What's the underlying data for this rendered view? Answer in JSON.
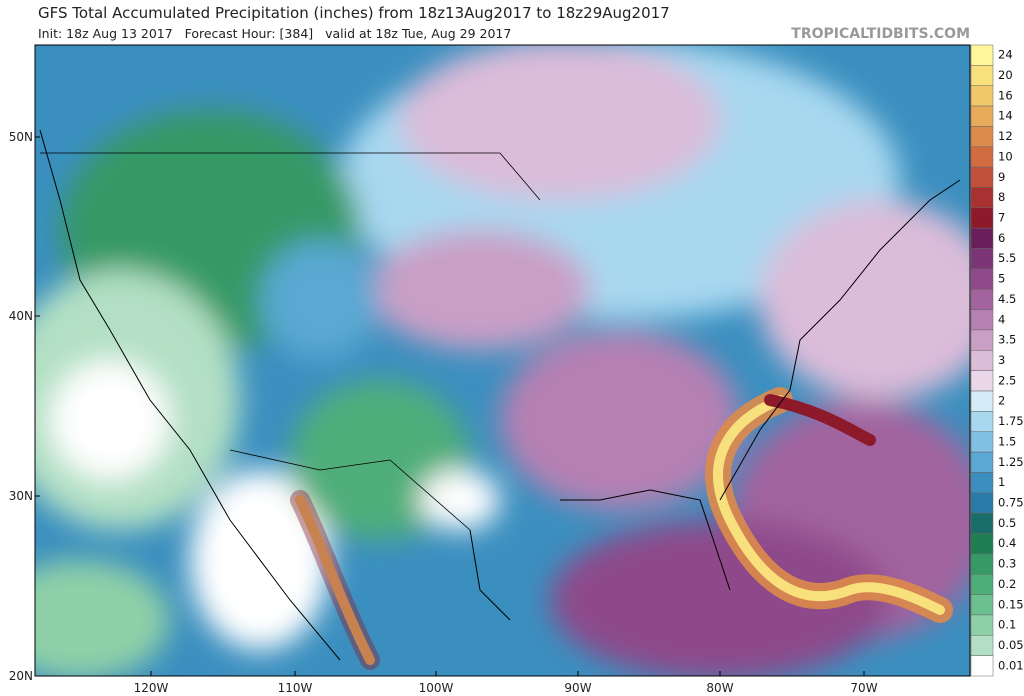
{
  "header": {
    "title": "GFS Total Accumulated Precipitation (inches) from 18z13Aug2017 to 18z29Aug2017",
    "subtitle": "Init: 18z Aug 13 2017   Forecast Hour: [384]   valid at 18z Tue, Aug 29 2017",
    "site": "TROPICALTIDBITS.COM"
  },
  "map": {
    "lat_labels": [
      "50N",
      "40N",
      "30N",
      "20N"
    ],
    "lon_labels": [
      "120W",
      "110W",
      "100W",
      "90W",
      "80W",
      "70W"
    ]
  },
  "colorbar": [
    {
      "label": "24",
      "color": "#fff59a"
    },
    {
      "label": "20",
      "color": "#f8e07c"
    },
    {
      "label": "16",
      "color": "#f0c86a"
    },
    {
      "label": "14",
      "color": "#e8ab5a"
    },
    {
      "label": "12",
      "color": "#dd8b4a"
    },
    {
      "label": "10",
      "color": "#d06c40"
    },
    {
      "label": "9",
      "color": "#c0503a"
    },
    {
      "label": "8",
      "color": "#a83232"
    },
    {
      "label": "7",
      "color": "#8c1a2b"
    },
    {
      "label": "6",
      "color": "#6a1f5a"
    },
    {
      "label": "5.5",
      "color": "#7b3577"
    },
    {
      "label": "5",
      "color": "#8e4a8a"
    },
    {
      "label": "4.5",
      "color": "#a2639f"
    },
    {
      "label": "4",
      "color": "#b680b2"
    },
    {
      "label": "3.5",
      "color": "#c99fc6"
    },
    {
      "label": "3",
      "color": "#dbbcd9"
    },
    {
      "label": "2.5",
      "color": "#ead8ea"
    },
    {
      "label": "2",
      "color": "#d3ecf8"
    },
    {
      "label": "1.75",
      "color": "#a8d8f0"
    },
    {
      "label": "1.5",
      "color": "#7fc0e3"
    },
    {
      "label": "1.25",
      "color": "#5aa8d3"
    },
    {
      "label": "1",
      "color": "#3b8fbf"
    },
    {
      "label": "0.75",
      "color": "#2a7aa8"
    },
    {
      "label": "0.5",
      "color": "#1a6e6a"
    },
    {
      "label": "0.4",
      "color": "#1f7f52"
    },
    {
      "label": "0.3",
      "color": "#369966"
    },
    {
      "label": "0.2",
      "color": "#4fae7a"
    },
    {
      "label": "0.15",
      "color": "#6cbf8e"
    },
    {
      "label": "0.1",
      "color": "#8fd0a8"
    },
    {
      "label": "0.05",
      "color": "#b3e0c4"
    },
    {
      "label": "0.01",
      "color": "#ffffff"
    }
  ]
}
